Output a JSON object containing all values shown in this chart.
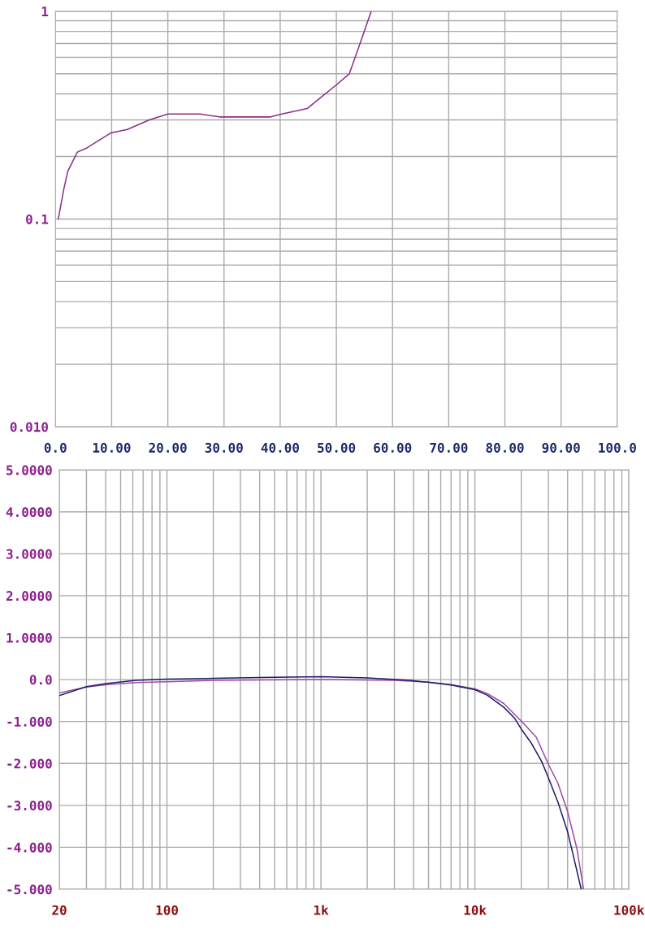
{
  "chart_data": [
    {
      "type": "line",
      "log": "y",
      "grid": true,
      "marker": "none",
      "line_style": "solid",
      "xlim": [
        0,
        100
      ],
      "ylim": [
        0.01,
        1
      ],
      "xticks": [
        {
          "value": 0,
          "label": "0.0"
        },
        {
          "value": 10,
          "label": "10.00"
        },
        {
          "value": 20,
          "label": "20.00"
        },
        {
          "value": 30,
          "label": "30.00"
        },
        {
          "value": 40,
          "label": "40.00"
        },
        {
          "value": 50,
          "label": "50.00"
        },
        {
          "value": 60,
          "label": "60.00"
        },
        {
          "value": 70,
          "label": "70.00"
        },
        {
          "value": 80,
          "label": "80.00"
        },
        {
          "value": 90,
          "label": "90.00"
        },
        {
          "value": 100,
          "label": "100.0"
        }
      ],
      "yticks": [
        {
          "value": 0.01,
          "label": "0.010"
        },
        {
          "value": 0.02,
          "label": null
        },
        {
          "value": 0.03,
          "label": null
        },
        {
          "value": 0.04,
          "label": null
        },
        {
          "value": 0.05,
          "label": null
        },
        {
          "value": 0.06,
          "label": null
        },
        {
          "value": 0.07,
          "label": null
        },
        {
          "value": 0.08,
          "label": null
        },
        {
          "value": 0.09,
          "label": null
        },
        {
          "value": 0.1,
          "label": "0.1"
        },
        {
          "value": 0.2,
          "label": null
        },
        {
          "value": 0.3,
          "label": null
        },
        {
          "value": 0.4,
          "label": null
        },
        {
          "value": 0.5,
          "label": null
        },
        {
          "value": 0.6,
          "label": null
        },
        {
          "value": 0.7,
          "label": null
        },
        {
          "value": 0.8,
          "label": null
        },
        {
          "value": 0.9,
          "label": null
        },
        {
          "value": 1,
          "label": "1"
        }
      ],
      "series": [
        {
          "color": "#8e2f86",
          "x": [
            0.5,
            1.5,
            2.2,
            3.9,
            5.6,
            9.9,
            12.8,
            16.7,
            20.0,
            22.9,
            25.8,
            29.2,
            31.6,
            38.3,
            40.3,
            44.8,
            47.5,
            49.9,
            52.3,
            53.8,
            56.2
          ],
          "values": [
            0.1,
            0.14,
            0.17,
            0.21,
            0.22,
            0.26,
            0.27,
            0.3,
            0.32,
            0.32,
            0.32,
            0.31,
            0.31,
            0.31,
            0.32,
            0.34,
            0.39,
            0.44,
            0.5,
            0.65,
            1.0
          ]
        }
      ]
    },
    {
      "type": "line",
      "log": "x",
      "grid": true,
      "marker": "none",
      "line_style": "solid",
      "xlim": [
        20,
        100000
      ],
      "ylim": [
        -5,
        5
      ],
      "xticks": [
        20,
        {
          "value": 30,
          "label": null
        },
        {
          "value": 40,
          "label": null
        },
        {
          "value": 50,
          "label": null
        },
        {
          "value": 60,
          "label": null
        },
        {
          "value": 70,
          "label": null
        },
        {
          "value": 80,
          "label": null
        },
        {
          "value": 90,
          "label": null
        },
        100,
        {
          "value": 200,
          "label": null
        },
        {
          "value": 300,
          "label": null
        },
        {
          "value": 400,
          "label": null
        },
        {
          "value": 500,
          "label": null
        },
        {
          "value": 600,
          "label": null
        },
        {
          "value": 700,
          "label": null
        },
        {
          "value": 800,
          "label": null
        },
        {
          "value": 900,
          "label": null
        },
        {
          "value": 1000,
          "label": "1k"
        },
        {
          "value": 2000,
          "label": null
        },
        {
          "value": 3000,
          "label": null
        },
        {
          "value": 4000,
          "label": null
        },
        {
          "value": 5000,
          "label": null
        },
        {
          "value": 6000,
          "label": null
        },
        {
          "value": 7000,
          "label": null
        },
        {
          "value": 8000,
          "label": null
        },
        {
          "value": 9000,
          "label": null
        },
        {
          "value": 10000,
          "label": "10k"
        },
        {
          "value": 20000,
          "label": null
        },
        {
          "value": 30000,
          "label": null
        },
        {
          "value": 40000,
          "label": null
        },
        {
          "value": 50000,
          "label": null
        },
        {
          "value": 60000,
          "label": null
        },
        {
          "value": 70000,
          "label": null
        },
        {
          "value": 80000,
          "label": null
        },
        {
          "value": 90000,
          "label": null
        },
        {
          "value": 100000,
          "label": "100k"
        }
      ],
      "yticks": [
        {
          "value": 5,
          "label": "5.0000"
        },
        {
          "value": 4,
          "label": "4.0000"
        },
        {
          "value": 3,
          "label": "3.0000"
        },
        {
          "value": 2,
          "label": "2.0000"
        },
        {
          "value": 1,
          "label": "1.0000"
        },
        {
          "value": 0,
          "label": "0.0"
        },
        {
          "value": -1,
          "label": "-1.000"
        },
        {
          "value": -2,
          "label": "-2.000"
        },
        {
          "value": -3,
          "label": "-3.000"
        },
        {
          "value": -4,
          "label": "-4.000"
        },
        {
          "value": -5,
          "label": "-5.000"
        }
      ],
      "series": [
        {
          "color": "#a04aa0",
          "x": [
            20,
            30,
            41,
            63,
            100,
            200,
            1000,
            3000,
            5000,
            7000,
            10000,
            12000,
            15400,
            20400,
            25000,
            30000,
            34600,
            40000,
            45900,
            50800
          ],
          "values": [
            -0.32,
            -0.18,
            -0.12,
            -0.07,
            -0.05,
            -0.02,
            0.0,
            -0.02,
            -0.06,
            -0.12,
            -0.22,
            -0.33,
            -0.57,
            -1.02,
            -1.37,
            -2.02,
            -2.47,
            -3.15,
            -4.02,
            -5.0
          ]
        },
        {
          "color": "#1c1c6c",
          "x": [
            20,
            30,
            41,
            63,
            100,
            200,
            400,
            1000,
            2000,
            3800,
            5200,
            7000,
            10000,
            12000,
            15400,
            18100,
            20000,
            23100,
            27100,
            30000,
            34600,
            40000,
            44100,
            49000
          ],
          "values": [
            -0.38,
            -0.17,
            -0.09,
            -0.02,
            0.01,
            0.03,
            0.05,
            0.07,
            0.04,
            -0.02,
            -0.07,
            -0.13,
            -0.24,
            -0.37,
            -0.66,
            -0.92,
            -1.18,
            -1.5,
            -1.95,
            -2.34,
            -2.92,
            -3.63,
            -4.28,
            -5.0
          ]
        }
      ]
    }
  ]
}
